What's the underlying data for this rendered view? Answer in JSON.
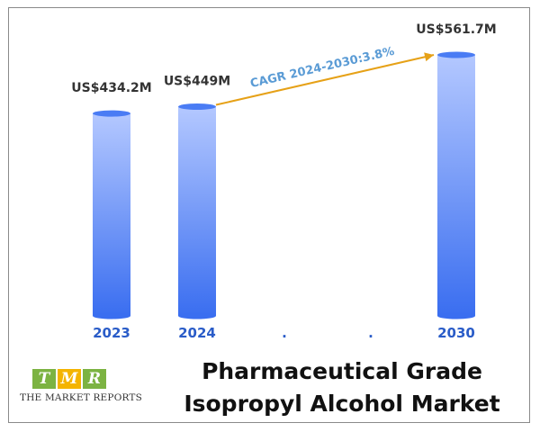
{
  "chart_data": {
    "type": "bar",
    "categories": [
      "2023",
      "2024",
      ".",
      ".",
      "2030"
    ],
    "values": [
      434.2,
      449,
      null,
      null,
      561.7
    ],
    "value_labels": [
      "US$434.2M",
      "US$449M",
      "",
      "",
      "US$561.7M"
    ],
    "annotation": {
      "text": "CAGR 2024-2030:3.8%",
      "from": "2024",
      "to": "2030",
      "line_color": "#e6a117",
      "text_color": "#5a9bd5"
    },
    "unit": "US$ M",
    "bar_color_top": "#b4c8ff",
    "bar_color_bottom": "#3a6ef0",
    "tick_color": "#2a5cc8",
    "grid": false
  },
  "title": {
    "line1": "Pharmaceutical Grade",
    "line2": "Isopropyl Alcohol Market"
  },
  "logo": {
    "letters": [
      "T",
      "M",
      "R"
    ],
    "colors": [
      "#7cb342",
      "#f4b400",
      "#7cb342"
    ],
    "subtitle": "THE MARKET REPORTS"
  }
}
